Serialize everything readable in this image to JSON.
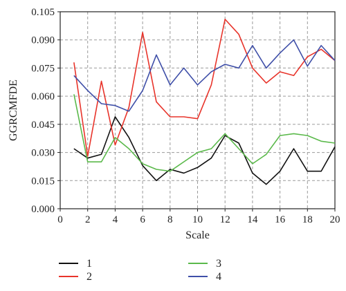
{
  "chart_data": {
    "type": "line",
    "xlabel": "Scale",
    "ylabel": "GGRCMFDE",
    "xlim": [
      0,
      20
    ],
    "ylim": [
      0,
      0.105
    ],
    "xticks": [
      0,
      2,
      4,
      6,
      8,
      10,
      12,
      14,
      16,
      18,
      20
    ],
    "xtick_labels": [
      "0",
      "2",
      "4",
      "6",
      "8",
      "10",
      "12",
      "14",
      "16",
      "18",
      "20"
    ],
    "yticks": [
      0,
      0.015,
      0.03,
      0.045,
      0.06,
      0.075,
      0.09,
      0.105
    ],
    "ytick_labels": [
      "0.000",
      "0.015",
      "0.030",
      "0.045",
      "0.060",
      "0.075",
      "0.090",
      "0.105"
    ],
    "grid": true,
    "legend_position": "bottom",
    "x": [
      1,
      2,
      3,
      4,
      5,
      6,
      7,
      8,
      9,
      10,
      11,
      12,
      13,
      14,
      15,
      16,
      17,
      18,
      19,
      20
    ],
    "series": [
      {
        "name": "1",
        "color": "#111111",
        "values": [
          0.032,
          0.027,
          0.029,
          0.049,
          0.038,
          0.023,
          0.015,
          0.021,
          0.019,
          0.022,
          0.027,
          0.039,
          0.035,
          0.019,
          0.013,
          0.02,
          0.032,
          0.02,
          0.02,
          0.033
        ]
      },
      {
        "name": "2",
        "color": "#e8332a",
        "values": [
          0.078,
          0.028,
          0.068,
          0.034,
          0.054,
          0.094,
          0.057,
          0.049,
          0.049,
          0.048,
          0.066,
          0.101,
          0.093,
          0.075,
          0.067,
          0.073,
          0.071,
          0.081,
          0.085,
          0.079
        ]
      },
      {
        "name": "3",
        "color": "#5ab94a",
        "values": [
          0.061,
          0.025,
          0.025,
          0.038,
          0.032,
          0.024,
          0.021,
          0.02,
          0.025,
          0.03,
          0.032,
          0.04,
          0.032,
          0.024,
          0.029,
          0.039,
          0.04,
          0.039,
          0.036,
          0.035
        ]
      },
      {
        "name": "4",
        "color": "#3f4fa8",
        "values": [
          0.071,
          0.063,
          0.056,
          0.055,
          0.052,
          0.063,
          0.082,
          0.066,
          0.075,
          0.066,
          0.073,
          0.077,
          0.075,
          0.087,
          0.075,
          0.083,
          0.09,
          0.076,
          0.087,
          0.079
        ]
      }
    ]
  }
}
